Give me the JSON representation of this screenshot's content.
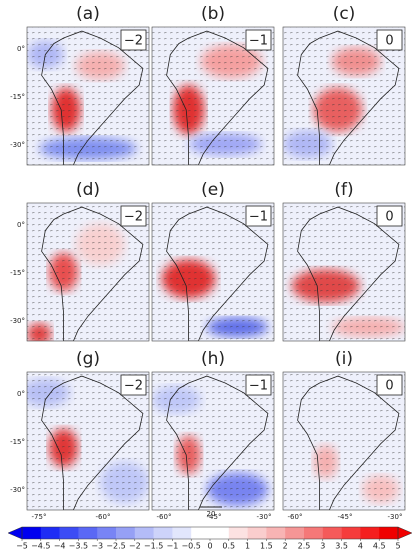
{
  "panels": [
    {
      "label": "(a)",
      "lag": "−2"
    },
    {
      "label": "(b)",
      "lag": "−1"
    },
    {
      "label": "(c)",
      "lag": "0"
    },
    {
      "label": "(d)",
      "lag": "−2"
    },
    {
      "label": "(e)",
      "lag": "−1"
    },
    {
      "label": "(f)",
      "lag": "0"
    },
    {
      "label": "(g)",
      "lag": "−2"
    },
    {
      "label": "(h)",
      "lag": "−1"
    },
    {
      "label": "(i)",
      "lag": "0"
    }
  ],
  "lat_labels": [
    "0°",
    "-15°",
    "-30°"
  ],
  "lon_labels": [
    [
      "-75°",
      "-60°"
    ],
    [
      "-60°",
      "-45°",
      "-30°"
    ],
    [
      "-60°",
      "-45°",
      "-30°"
    ]
  ],
  "reference_vector": "20",
  "colorbar": {
    "ticks": [
      {
        "value": -5,
        "label": "−5"
      },
      {
        "value": -4.5,
        "label": "−4.5"
      },
      {
        "value": -4,
        "label": "−4"
      },
      {
        "value": -3.5,
        "label": "−3.5"
      },
      {
        "value": -3,
        "label": "−3"
      },
      {
        "value": -2.5,
        "label": "−2.5"
      },
      {
        "value": -2,
        "label": "−2"
      },
      {
        "value": -1.5,
        "label": "−1.5"
      },
      {
        "value": -1,
        "label": "−1"
      },
      {
        "value": -0.5,
        "label": "−0.5"
      },
      0,
      0.5,
      1,
      1.5,
      2,
      2.5,
      3,
      3.5,
      4,
      4.5,
      5
    ],
    "colors": [
      "#0000f0",
      "#1e2cf5",
      "#3c4cf5",
      "#5a68f5",
      "#7884f5",
      "#96a0f5",
      "#b4bcf8",
      "#cdd3fa",
      "#e2e6fc",
      "#ffffff",
      "#ffffff",
      "#fce2e2",
      "#facdcd",
      "#f8b4b4",
      "#f59696",
      "#f57878",
      "#f55a5a",
      "#f53c3c",
      "#f51e1e",
      "#f00000"
    ]
  }
}
